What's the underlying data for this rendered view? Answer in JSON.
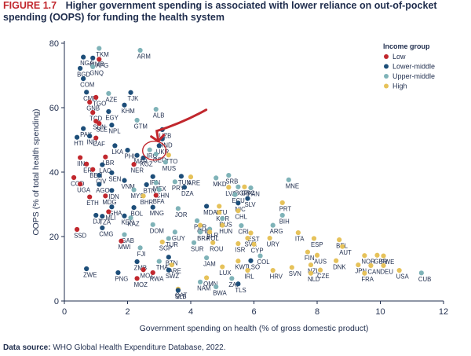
{
  "figure": {
    "label": "FIGURE 1.7",
    "title_line1": "Higher government spending is associated with lower reliance on out-of-pocket",
    "title_line2": "spending (OOPS) for funding the health system"
  },
  "source": {
    "label": "Data source:",
    "text": "WHO Global Health Expenditure Database, 2022."
  },
  "chart_data": {
    "type": "scatter",
    "xlabel": "Government spending on health (% of gross domestic product)",
    "ylabel": "OOPS (% of total health spending)",
    "xlim": [
      0,
      12
    ],
    "ylim": [
      0,
      80
    ],
    "xticks": [
      0,
      2,
      4,
      6,
      8,
      10,
      12
    ],
    "yticks": [
      0,
      20,
      40,
      60,
      80
    ],
    "grid": false,
    "legend": {
      "title": "Income group",
      "placement": "top-right",
      "items": [
        {
          "key": "low",
          "label": "Low",
          "color": "#c1272d"
        },
        {
          "key": "lower_middle",
          "label": "Lower-middle",
          "color": "#1d4e79"
        },
        {
          "key": "upper_middle",
          "label": "Upper-middle",
          "color": "#7fb3b8"
        },
        {
          "key": "high",
          "label": "High",
          "color": "#e6c25a"
        }
      ]
    },
    "annotation": {
      "type": "arrow-circle",
      "target": "IRQ",
      "color": "#c1272d"
    },
    "points": [
      {
        "label": "TKM",
        "x": 1.1,
        "y": 78.4,
        "group": "upper_middle"
      },
      {
        "label": "ARM",
        "x": 2.4,
        "y": 77.8,
        "group": "upper_middle"
      },
      {
        "label": "NGA",
        "x": 0.6,
        "y": 75.7,
        "group": "lower_middle"
      },
      {
        "label": "MMR",
        "x": 0.9,
        "y": 75.4,
        "group": "lower_middle"
      },
      {
        "label": "AFG",
        "x": 1.1,
        "y": 75.0,
        "group": "low"
      },
      {
        "label": "BGD",
        "x": 0.5,
        "y": 72.2,
        "group": "lower_middle"
      },
      {
        "label": "GNQ",
        "x": 0.9,
        "y": 72.7,
        "group": "upper_middle"
      },
      {
        "label": "COM",
        "x": 0.6,
        "y": 69.0,
        "group": "lower_middle"
      },
      {
        "label": "CMR",
        "x": 0.7,
        "y": 64.8,
        "group": "lower_middle"
      },
      {
        "label": "TGO",
        "x": 1.0,
        "y": 63.2,
        "group": "low"
      },
      {
        "label": "AZE",
        "x": 1.4,
        "y": 64.4,
        "group": "upper_middle"
      },
      {
        "label": "TJK",
        "x": 2.1,
        "y": 64.7,
        "group": "lower_middle"
      },
      {
        "label": "GNB",
        "x": 0.8,
        "y": 61.7,
        "group": "low"
      },
      {
        "label": "KHM",
        "x": 1.9,
        "y": 60.8,
        "group": "lower_middle"
      },
      {
        "label": "ALB",
        "x": 2.9,
        "y": 59.5,
        "group": "upper_middle"
      },
      {
        "label": "TCD",
        "x": 0.9,
        "y": 58.5,
        "group": "low"
      },
      {
        "label": "EGY",
        "x": 1.4,
        "y": 58.8,
        "group": "lower_middle"
      },
      {
        "label": "GTM",
        "x": 2.3,
        "y": 56.1,
        "group": "upper_middle"
      },
      {
        "label": "SDN",
        "x": 1.0,
        "y": 55.8,
        "group": "low"
      },
      {
        "label": "SLE",
        "x": 1.1,
        "y": 55.1,
        "group": "low"
      },
      {
        "label": "NPL",
        "x": 1.5,
        "y": 54.6,
        "group": "lower_middle"
      },
      {
        "label": "PAK",
        "x": 0.6,
        "y": 53.5,
        "group": "lower_middle"
      },
      {
        "label": "UZB",
        "x": 3.1,
        "y": 53.2,
        "group": "lower_middle"
      },
      {
        "label": "HTI",
        "x": 0.4,
        "y": 50.8,
        "group": "lower_middle"
      },
      {
        "label": "IND",
        "x": 0.8,
        "y": 51.2,
        "group": "lower_middle"
      },
      {
        "label": "CAF",
        "x": 1.0,
        "y": 50.6,
        "group": "low"
      },
      {
        "label": "HND",
        "x": 3.1,
        "y": 50.3,
        "group": "lower_middle"
      },
      {
        "label": "LKA",
        "x": 1.6,
        "y": 48.2,
        "group": "lower_middle"
      },
      {
        "label": "UKR",
        "x": 3.0,
        "y": 48.2,
        "group": "lower_middle"
      },
      {
        "label": "PHL",
        "x": 2.0,
        "y": 46.8,
        "group": "lower_middle"
      },
      {
        "label": "IRQ",
        "x": 2.7,
        "y": 46.9,
        "group": "upper_middle"
      },
      {
        "label": "LBR",
        "x": 1.3,
        "y": 44.7,
        "group": "low"
      },
      {
        "label": "MAR",
        "x": 2.3,
        "y": 45.2,
        "group": "lower_middle"
      },
      {
        "label": "GEO",
        "x": 2.9,
        "y": 45.6,
        "group": "upper_middle"
      },
      {
        "label": "TTO",
        "x": 3.3,
        "y": 45.3,
        "group": "high"
      },
      {
        "label": "IIN",
        "x": 0.5,
        "y": 44.5,
        "group": "low"
      },
      {
        "label": "KGZ",
        "x": 2.5,
        "y": 44.4,
        "group": "lower_middle"
      },
      {
        "label": "MUS",
        "x": 3.2,
        "y": 43.1,
        "group": "upper_middle"
      },
      {
        "label": "ERI",
        "x": 0.7,
        "y": 42.5,
        "group": "low"
      },
      {
        "label": "LAO",
        "x": 1.2,
        "y": 42.3,
        "group": "lower_middle"
      },
      {
        "label": "NER",
        "x": 2.2,
        "y": 42.4,
        "group": "low"
      },
      {
        "label": "BEN",
        "x": 0.9,
        "y": 40.8,
        "group": "low"
      },
      {
        "label": "CIV",
        "x": 1.1,
        "y": 39.0,
        "group": "lower_middle"
      },
      {
        "label": "SEN",
        "x": 1.5,
        "y": 39.8,
        "group": "lower_middle"
      },
      {
        "label": "IRN",
        "x": 2.8,
        "y": 38.6,
        "group": "lower_middle"
      },
      {
        "label": "TUN",
        "x": 3.7,
        "y": 38.7,
        "group": "lower_middle"
      },
      {
        "label": "ARE",
        "x": 4.0,
        "y": 38.5,
        "group": "high"
      },
      {
        "label": "COD",
        "x": 0.3,
        "y": 38.3,
        "group": "low"
      },
      {
        "label": "VNM",
        "x": 1.9,
        "y": 37.4,
        "group": "lower_middle"
      },
      {
        "label": "MEX",
        "x": 2.9,
        "y": 36.7,
        "group": "upper_middle"
      },
      {
        "label": "PRY",
        "x": 3.5,
        "y": 37.0,
        "group": "upper_middle"
      },
      {
        "label": "MKD",
        "x": 4.8,
        "y": 38.2,
        "group": "upper_middle"
      },
      {
        "label": "SRB",
        "x": 5.2,
        "y": 39.0,
        "group": "upper_middle"
      },
      {
        "label": "UGA",
        "x": 0.5,
        "y": 36.3,
        "group": "low"
      },
      {
        "label": "AGO",
        "x": 1.1,
        "y": 36.2,
        "group": "lower_middle"
      },
      {
        "label": "BTN",
        "x": 2.6,
        "y": 36.1,
        "group": "lower_middle"
      },
      {
        "label": "DZA",
        "x": 3.8,
        "y": 35.3,
        "group": "lower_middle"
      },
      {
        "label": "LVA",
        "x": 5.2,
        "y": 35.3,
        "group": "high"
      },
      {
        "label": "BGR",
        "x": 5.5,
        "y": 35.4,
        "group": "upper_middle"
      },
      {
        "label": "GRC",
        "x": 5.7,
        "y": 35.4,
        "group": "high"
      },
      {
        "label": "PAN",
        "x": 5.9,
        "y": 35.1,
        "group": "upper_middle"
      },
      {
        "label": "MNE",
        "x": 7.1,
        "y": 37.6,
        "group": "upper_middle"
      },
      {
        "label": "MYS",
        "x": 2.2,
        "y": 34.5,
        "group": "upper_middle"
      },
      {
        "label": "IDN",
        "x": 1.5,
        "y": 34.3,
        "group": "lower_middle"
      },
      {
        "label": "CHN",
        "x": 3.0,
        "y": 34.6,
        "group": "upper_middle"
      },
      {
        "label": "ECU",
        "x": 5.4,
        "y": 33.0,
        "group": "upper_middle"
      },
      {
        "label": "ETH",
        "x": 0.8,
        "y": 32.3,
        "group": "low"
      },
      {
        "label": "MDG",
        "x": 1.3,
        "y": 32.6,
        "group": "low"
      },
      {
        "label": "BHR",
        "x": 2.5,
        "y": 32.6,
        "group": "high"
      },
      {
        "label": "BFA",
        "x": 2.9,
        "y": 32.8,
        "group": "low"
      },
      {
        "label": "SLV",
        "x": 5.8,
        "y": 31.8,
        "group": "lower_middle"
      },
      {
        "label": "PRT",
        "x": 6.9,
        "y": 30.5,
        "group": "high"
      },
      {
        "label": "NIC",
        "x": 5.5,
        "y": 30.4,
        "group": "lower_middle"
      },
      {
        "label": "MDA",
        "x": 4.5,
        "y": 29.4,
        "group": "lower_middle"
      },
      {
        "label": "LTU",
        "x": 4.9,
        "y": 29.4,
        "group": "high"
      },
      {
        "label": "GHA",
        "x": 1.5,
        "y": 29.2,
        "group": "lower_middle"
      },
      {
        "label": "BOL",
        "x": 2.2,
        "y": 29.0,
        "group": "lower_middle"
      },
      {
        "label": "MNG",
        "x": 2.8,
        "y": 29.1,
        "group": "lower_middle"
      },
      {
        "label": "JOR",
        "x": 3.6,
        "y": 28.7,
        "group": "upper_middle"
      },
      {
        "label": "CHL",
        "x": 5.5,
        "y": 28.0,
        "group": "high"
      },
      {
        "label": "KOR",
        "x": 4.9,
        "y": 27.5,
        "group": "high"
      },
      {
        "label": "MLI",
        "x": 1.4,
        "y": 27.7,
        "group": "low"
      },
      {
        "label": "BIH",
        "x": 6.9,
        "y": 26.6,
        "group": "upper_middle"
      },
      {
        "label": "DJI",
        "x": 1.0,
        "y": 26.6,
        "group": "lower_middle"
      },
      {
        "label": "TZA",
        "x": 1.2,
        "y": 26.3,
        "group": "lower_middle"
      },
      {
        "label": "KEN",
        "x": 1.9,
        "y": 26.4,
        "group": "lower_middle"
      },
      {
        "label": "KAZ",
        "x": 2.1,
        "y": 25.8,
        "group": "upper_middle"
      },
      {
        "label": "RUS",
        "x": 5.0,
        "y": 25.6,
        "group": "upper_middle"
      },
      {
        "label": "PER",
        "x": 4.2,
        "y": 24.9,
        "group": "upper_middle"
      },
      {
        "label": "DOM",
        "x": 2.8,
        "y": 23.7,
        "group": "upper_middle"
      },
      {
        "label": "CHE",
        "x": 4.3,
        "y": 23.5,
        "group": "high"
      },
      {
        "label": "HUN",
        "x": 5.0,
        "y": 23.5,
        "group": "high"
      },
      {
        "label": "CRI",
        "x": 5.6,
        "y": 23.4,
        "group": "upper_middle"
      },
      {
        "label": "ARG",
        "x": 6.6,
        "y": 23.5,
        "group": "upper_middle"
      },
      {
        "label": "CMG",
        "x": 1.2,
        "y": 22.7,
        "group": "lower_middle"
      },
      {
        "label": "BLR",
        "x": 4.6,
        "y": 22.3,
        "group": "upper_middle"
      },
      {
        "label": "SSD",
        "x": 0.4,
        "y": 22.2,
        "group": "low"
      },
      {
        "label": "GUY",
        "x": 3.5,
        "y": 21.4,
        "group": "upper_middle"
      },
      {
        "label": "BRA",
        "x": 4.3,
        "y": 21.4,
        "group": "upper_middle"
      },
      {
        "label": "POL",
        "x": 4.6,
        "y": 21.4,
        "group": "high"
      },
      {
        "label": "EST",
        "x": 5.9,
        "y": 21.1,
        "group": "high"
      },
      {
        "label": "ITA",
        "x": 7.4,
        "y": 21.2,
        "group": "high"
      },
      {
        "label": "GAB",
        "x": 1.9,
        "y": 20.6,
        "group": "upper_middle"
      },
      {
        "label": "TUR",
        "x": 3.3,
        "y": 19.4,
        "group": "upper_middle"
      },
      {
        "label": "SVK",
        "x": 5.8,
        "y": 19.5,
        "group": "high"
      },
      {
        "label": "URY",
        "x": 6.5,
        "y": 19.5,
        "group": "high"
      },
      {
        "label": "ESP",
        "x": 7.9,
        "y": 19.4,
        "group": "high"
      },
      {
        "label": "BEL",
        "x": 8.7,
        "y": 19.0,
        "group": "high"
      },
      {
        "label": "MWI",
        "x": 1.8,
        "y": 18.6,
        "group": "low"
      },
      {
        "label": "SGP",
        "x": 3.1,
        "y": 18.3,
        "group": "high"
      },
      {
        "label": "SUR",
        "x": 4.1,
        "y": 18.1,
        "group": "upper_middle"
      },
      {
        "label": "ROU",
        "x": 4.7,
        "y": 18.1,
        "group": "high"
      },
      {
        "label": "ISR",
        "x": 5.5,
        "y": 17.8,
        "group": "high"
      },
      {
        "label": "CYP",
        "x": 6.0,
        "y": 17.6,
        "group": "high"
      },
      {
        "label": "AUT",
        "x": 8.8,
        "y": 16.9,
        "group": "high"
      },
      {
        "label": "FJI",
        "x": 2.4,
        "y": 16.5,
        "group": "upper_middle"
      },
      {
        "label": "FIN",
        "x": 7.7,
        "y": 15.2,
        "group": "high"
      },
      {
        "label": "AUS",
        "x": 8.0,
        "y": 14.2,
        "group": "high"
      },
      {
        "label": "NOR",
        "x": 9.5,
        "y": 14.1,
        "group": "high"
      },
      {
        "label": "GBR",
        "x": 9.9,
        "y": 14.2,
        "group": "high"
      },
      {
        "label": "SWE",
        "x": 10.1,
        "y": 14.0,
        "group": "high"
      },
      {
        "label": "COL",
        "x": 6.2,
        "y": 14.0,
        "group": "upper_middle"
      },
      {
        "label": "BTN",
        "x": 3.3,
        "y": 13.6,
        "group": "lower_middle"
      },
      {
        "label": "JAM",
        "x": 4.5,
        "y": 13.4,
        "group": "upper_middle"
      },
      {
        "label": "KWT",
        "x": 5.5,
        "y": 12.4,
        "group": "high"
      },
      {
        "label": "LSO",
        "x": 5.9,
        "y": 12.5,
        "group": "lower_middle"
      },
      {
        "label": "DNK",
        "x": 8.6,
        "y": 12.5,
        "group": "high"
      },
      {
        "label": "ZMB",
        "x": 2.3,
        "y": 12.2,
        "group": "lower_middle"
      },
      {
        "label": "THA",
        "x": 3.0,
        "y": 12.3,
        "group": "upper_middle"
      },
      {
        "label": "ARE",
        "x": 3.4,
        "y": 11.2,
        "group": "high"
      },
      {
        "label": "NZL",
        "x": 7.8,
        "y": 11.2,
        "group": "high"
      },
      {
        "label": "JPN",
        "x": 9.3,
        "y": 11.2,
        "group": "high"
      },
      {
        "label": "CAN",
        "x": 9.7,
        "y": 11.0,
        "group": "high"
      },
      {
        "label": "DEU",
        "x": 10.1,
        "y": 11.0,
        "group": "high"
      },
      {
        "label": "LUX",
        "x": 5.0,
        "y": 10.6,
        "group": "high"
      },
      {
        "label": "SVN",
        "x": 7.2,
        "y": 10.4,
        "group": "high"
      },
      {
        "label": "CUB",
        "x": 11.3,
        "y": 8.7,
        "group": "upper_middle"
      },
      {
        "label": "ZWE",
        "x": 0.7,
        "y": 10.0,
        "group": "lower_middle"
      },
      {
        "label": "SWZ",
        "x": 3.3,
        "y": 9.6,
        "group": "lower_middle"
      },
      {
        "label": "MOZ",
        "x": 2.5,
        "y": 9.7,
        "group": "low"
      },
      {
        "label": "IRL",
        "x": 5.8,
        "y": 9.5,
        "group": "high"
      },
      {
        "label": "HRV",
        "x": 6.6,
        "y": 9.5,
        "group": "high"
      },
      {
        "label": "CZE",
        "x": 8.1,
        "y": 9.6,
        "group": "high"
      },
      {
        "label": "USA",
        "x": 10.6,
        "y": 9.5,
        "group": "high"
      },
      {
        "label": "RWA",
        "x": 2.8,
        "y": 8.8,
        "group": "low"
      },
      {
        "label": "PNG",
        "x": 1.7,
        "y": 8.8,
        "group": "lower_middle"
      },
      {
        "label": "NLD",
        "x": 7.8,
        "y": 8.6,
        "group": "high"
      },
      {
        "label": "FRA",
        "x": 9.5,
        "y": 8.6,
        "group": "high"
      },
      {
        "label": "OMN",
        "x": 4.5,
        "y": 7.2,
        "group": "high"
      },
      {
        "label": "ZAF",
        "x": 5.3,
        "y": 7.0,
        "group": "upper_middle"
      },
      {
        "label": "MOZ",
        "x": 2.3,
        "y": 7.0,
        "group": "low"
      },
      {
        "label": "NAM",
        "x": 4.3,
        "y": 5.9,
        "group": "upper_middle"
      },
      {
        "label": "TLS",
        "x": 5.5,
        "y": 5.3,
        "group": "lower_middle"
      },
      {
        "label": "BWA",
        "x": 4.8,
        "y": 4.4,
        "group": "upper_middle"
      },
      {
        "label": "QAT",
        "x": 3.6,
        "y": 3.7,
        "group": "high"
      },
      {
        "label": "SLB",
        "x": 3.6,
        "y": 3.3,
        "group": "lower_middle"
      }
    ]
  }
}
